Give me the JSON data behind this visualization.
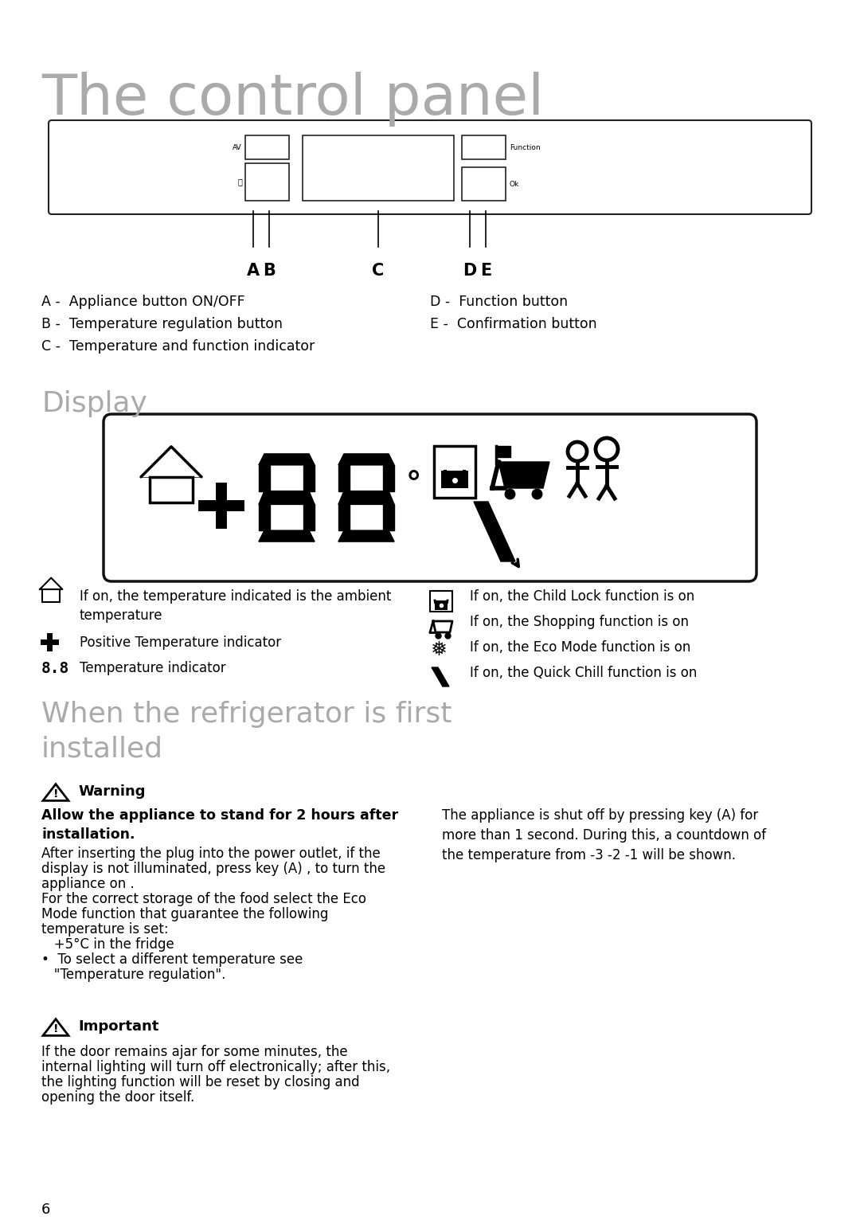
{
  "bg_color": "#ffffff",
  "title": "The control panel",
  "title_color": "#aaaaaa",
  "title_fontsize": 52,
  "section2_title": "Display",
  "section2_color": "#aaaaaa",
  "section2_fontsize": 26,
  "section3_title": "When the refrigerator is first\ninstalled",
  "section3_color": "#aaaaaa",
  "section3_fontsize": 26,
  "page_number": "6",
  "left_labels": [
    "A -  Appliance button ON/OFF",
    "B -  Temperature regulation button",
    "C -  Temperature and function indicator"
  ],
  "right_labels": [
    "D -  Function button",
    "E -  Confirmation button"
  ],
  "display_left_descs": [
    "If on, the temperature indicated is the ambient\ntemperature",
    "Positive Temperature indicator",
    "Temperature indicator"
  ],
  "display_right_descs": [
    "If on, the Child Lock function is on",
    "If on, the Shopping function is on",
    "If on, the Eco Mode function is on",
    "If on, the Quick Chill function is on"
  ],
  "warning_title": "Warning",
  "warning_bold": "Allow the appliance to stand for 2 hours after\ninstallation.",
  "warning_text_lines": [
    "After inserting the plug into the power outlet, if the",
    "display is not illuminated, press key (A) , to turn the",
    "appliance on .",
    "For the correct storage of the food select the Eco",
    "Mode function that guarantee the following",
    "temperature is set:",
    "   +5°C in the fridge",
    "•  To select a different temperature see",
    "   \"Temperature regulation\"."
  ],
  "important_title": "Important",
  "important_text_lines": [
    "If the door remains ajar for some minutes, the",
    "internal lighting will turn off electronically; after this,",
    "the lighting function will be reset by closing and",
    "opening the door itself."
  ],
  "right_col_text_lines": [
    "The appliance is shut off by pressing key (A) for",
    "more than 1 second. During this, a countdown of",
    "the temperature from -3 -2 -1 will be shown."
  ]
}
